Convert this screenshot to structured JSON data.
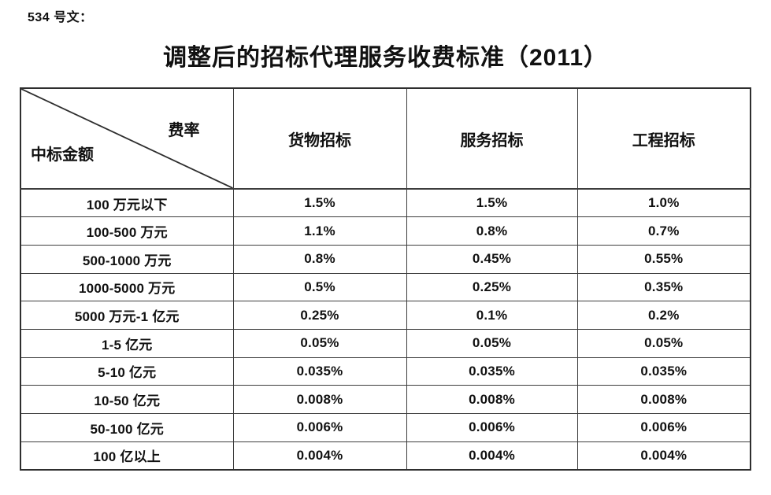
{
  "page": {
    "doc_label": "534 号文：",
    "title": "调整后的招标代理服务收费标准（2011）"
  },
  "colors": {
    "background": "#ffffff",
    "text": "#111111",
    "table_border": "#3d3d3d"
  },
  "table": {
    "corner": {
      "top_right": "费率",
      "bottom_left": "中标金额"
    },
    "columns": [
      "货物招标",
      "服务招标",
      "工程招标"
    ],
    "rows": [
      {
        "amount": "100 万元以下",
        "values": [
          "1.5%",
          "1.5%",
          "1.0%"
        ]
      },
      {
        "amount": "100-500 万元",
        "values": [
          "1.1%",
          "0.8%",
          "0.7%"
        ]
      },
      {
        "amount": "500-1000 万元",
        "values": [
          "0.8%",
          "0.45%",
          "0.55%"
        ]
      },
      {
        "amount": "1000-5000 万元",
        "values": [
          "0.5%",
          "0.25%",
          "0.35%"
        ]
      },
      {
        "amount": "5000 万元-1 亿元",
        "values": [
          "0.25%",
          "0.1%",
          "0.2%"
        ]
      },
      {
        "amount": "1-5 亿元",
        "values": [
          "0.05%",
          "0.05%",
          "0.05%"
        ]
      },
      {
        "amount": "5-10 亿元",
        "values": [
          "0.035%",
          "0.035%",
          "0.035%"
        ]
      },
      {
        "amount": "10-50 亿元",
        "values": [
          "0.008%",
          "0.008%",
          "0.008%"
        ]
      },
      {
        "amount": "50-100 亿元",
        "values": [
          "0.006%",
          "0.006%",
          "0.006%"
        ]
      },
      {
        "amount": "100 亿以上",
        "values": [
          "0.004%",
          "0.004%",
          "0.004%"
        ]
      }
    ]
  }
}
